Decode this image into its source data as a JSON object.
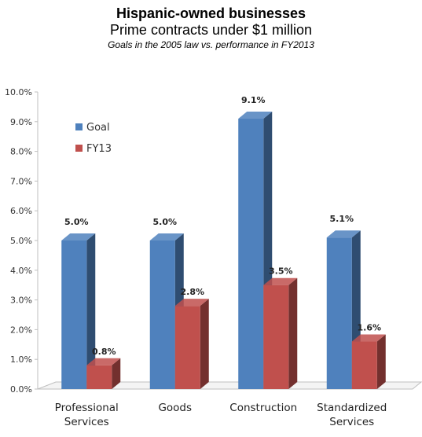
{
  "title": "Hispanic-owned businesses",
  "subtitle": "Prime contracts under $1 million",
  "note": "Goals in the 2005 law vs. performance in FY2013",
  "chart_data": {
    "type": "bar",
    "categories": [
      [
        "Professional",
        "Services"
      ],
      [
        "Goods"
      ],
      [
        "Construction"
      ],
      [
        "Standardized",
        "Services"
      ]
    ],
    "series": [
      {
        "name": "Goal",
        "values": [
          5.0,
          5.0,
          9.1,
          5.1
        ],
        "labels": [
          "5.0%",
          "5.0%",
          "9.1%",
          "5.1%"
        ],
        "color": "#4F81BD"
      },
      {
        "name": "FY13",
        "values": [
          0.8,
          2.8,
          3.5,
          1.6
        ],
        "labels": [
          "0.8%",
          "2.8%",
          "3.5%",
          "1.6%"
        ],
        "color": "#C0504D"
      }
    ],
    "yticks": [
      "0.0%",
      "1.0%",
      "2.0%",
      "3.0%",
      "4.0%",
      "5.0%",
      "6.0%",
      "7.0%",
      "8.0%",
      "9.0%",
      "10.0%"
    ],
    "ylim": [
      0,
      10
    ],
    "grid": false,
    "legend_position": "top-left",
    "style": "3d-clustered-bar"
  }
}
